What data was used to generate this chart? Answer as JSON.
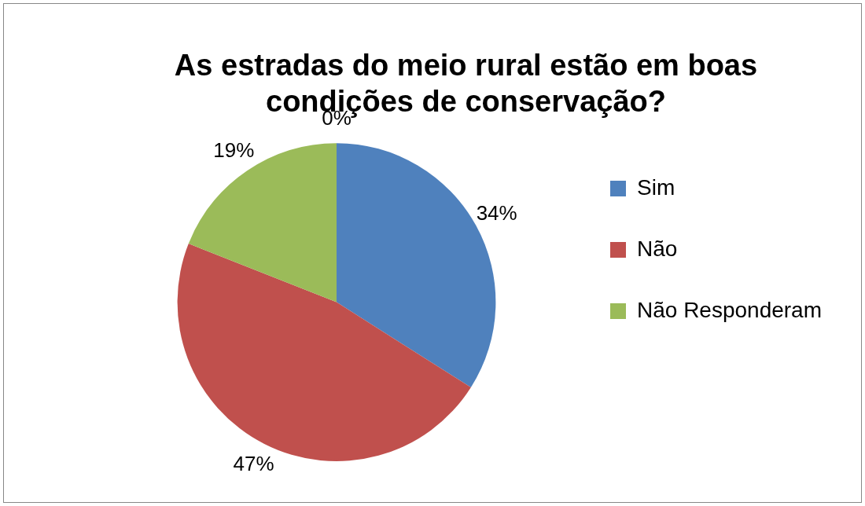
{
  "chart_data": {
    "type": "pie",
    "title": "As estradas do meio rural estão em boas condições de conservação?",
    "categories": [
      "Sim",
      "Não",
      "Não Responderam",
      null
    ],
    "values": [
      34,
      47,
      19,
      0
    ],
    "colors": [
      "#4f81bd",
      "#c0504d",
      "#9bbb59",
      "#8064a2"
    ],
    "value_labels": [
      "34%",
      "47%",
      "19%",
      "0%"
    ],
    "legend": "right"
  }
}
